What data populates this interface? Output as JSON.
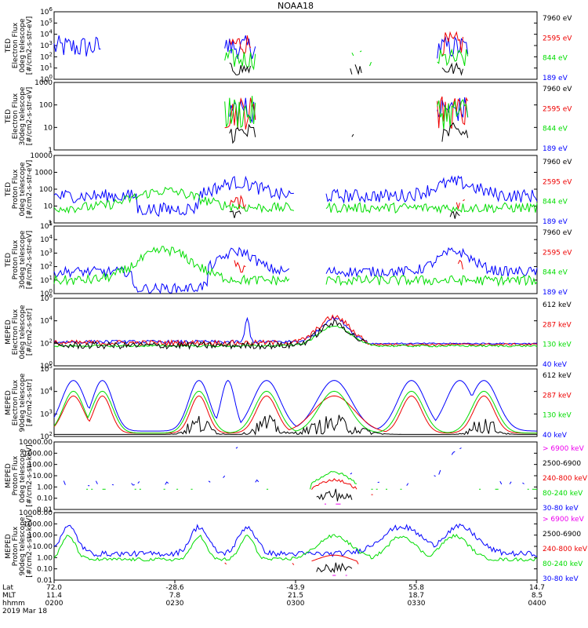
{
  "title": "NOAA18",
  "colors": {
    "blue": "#0000ff",
    "red": "#ee0000",
    "green": "#00dd00",
    "black": "#000000",
    "magenta": "#ee00ee"
  },
  "panels": [
    {
      "ylabel": [
        "TED",
        "Electron Flux",
        "0deg telescope",
        "[#/cm2-s-str-eV]"
      ],
      "ticks": [
        "10^6",
        "10^5",
        "10^4",
        "10^3",
        "10^2",
        "10^1",
        "10^0"
      ],
      "legend": [
        "7960 eV",
        "2595 eV",
        "844 eV",
        "189 eV"
      ]
    },
    {
      "ylabel": [
        "TED",
        "Electron Flux",
        "30deg telescope",
        "[#/cm2-s-str-eV]"
      ],
      "ticks": [
        "1000",
        "100",
        "10",
        "1"
      ],
      "legend": [
        "7960 eV",
        "2595 eV",
        "844 eV",
        "189 eV"
      ]
    },
    {
      "ylabel": [
        "TED",
        "Proton Flux",
        "0deg telescope",
        "[#/cm2-s-str-eV]"
      ],
      "ticks": [
        "10000",
        "1000",
        "100",
        "10",
        "1"
      ],
      "legend": [
        "7960 eV",
        "2595 eV",
        "844 eV",
        "189 eV"
      ]
    },
    {
      "ylabel": [
        "TED",
        "Proton Flux",
        "30deg telescope",
        "[#/cm2-s-str-eV]"
      ],
      "ticks": [
        "10^5",
        "10^4",
        "10^3",
        "10^2",
        "10^1",
        "10^0"
      ],
      "legend": [
        "7960 eV",
        "2595 eV",
        "844 eV",
        "189 eV"
      ]
    },
    {
      "ylabel": [
        "MEPED",
        "Electron Flux",
        "0deg telescope",
        "[#/cm2-s-str]"
      ],
      "ticks": [
        "10^6",
        "10^4",
        "10^2",
        "10^0"
      ],
      "legend": [
        "612 keV",
        "287 keV",
        "130 keV",
        "40 keV"
      ]
    },
    {
      "ylabel": [
        "MEPED",
        "Electron Flux",
        "90deg telescope",
        "[#/cm2-s-str]"
      ],
      "ticks": [
        "10^5",
        "10^4",
        "10^3",
        "10^2"
      ],
      "legend": [
        "612 keV",
        "287 keV",
        "130 keV",
        "40 keV"
      ]
    },
    {
      "ylabel": [
        "MEPED",
        "Proton Flux",
        "0deg telescope",
        "[#/cm2-s-str-keV]"
      ],
      "ticks": [
        "10000.00",
        "1000.00",
        "100.00",
        "10.00",
        "1.00",
        "0.10",
        "0.01"
      ],
      "legend": [
        "> 6900 keV",
        "2500-6900",
        "240-800 keV",
        "80-240 keV",
        "30-80 keV"
      ]
    },
    {
      "ylabel": [
        "MEPED",
        "Proton Flux",
        "90deg telescope",
        "[#/cm2-s-str-keV]"
      ],
      "ticks": [
        "10000.00",
        "1000.00",
        "100.00",
        "10.00",
        "1.00",
        "0.10",
        "0.01"
      ],
      "legend": [
        "> 6900 keV",
        "2500-6900",
        "240-800 keV",
        "80-240 keV",
        "30-80 keV"
      ]
    }
  ],
  "xaxis": {
    "row_labels": [
      "Lat",
      "MLT",
      "hhmm",
      "2019 Mar 18"
    ],
    "lat": [
      "72.0",
      "-28.6",
      "-43.9",
      "55.8",
      "14.7"
    ],
    "mlt": [
      "11.4",
      "7.8",
      "21.5",
      "18.7",
      "8.5"
    ],
    "hhmm": [
      "0200",
      "0230",
      "0300",
      "0330",
      "0400"
    ]
  },
  "chart_data": {
    "type": "line",
    "title": "NOAA18",
    "x_time": [
      "0200",
      "0230",
      "0300",
      "0330",
      "0400"
    ],
    "x_lat": [
      72.0,
      -28.6,
      -43.9,
      55.8,
      14.7
    ],
    "x_mlt": [
      11.4,
      7.8,
      21.5,
      18.7,
      8.5
    ],
    "date": "2019 Mar 18",
    "panels": [
      {
        "name": "TED Electron Flux 0deg",
        "series": [
          "7960 eV",
          "2595 eV",
          "844 eV",
          "189 eV"
        ],
        "yscale": "log",
        "ylim": [
          1,
          1000000
        ]
      },
      {
        "name": "TED Electron Flux 30deg",
        "series": [
          "7960 eV",
          "2595 eV",
          "844 eV",
          "189 eV"
        ],
        "yscale": "log",
        "ylim": [
          1,
          1000
        ]
      },
      {
        "name": "TED Proton Flux 0deg",
        "series": [
          "7960 eV",
          "2595 eV",
          "844 eV",
          "189 eV"
        ],
        "yscale": "log",
        "ylim": [
          1,
          10000
        ]
      },
      {
        "name": "TED Proton Flux 30deg",
        "series": [
          "7960 eV",
          "2595 eV",
          "844 eV",
          "189 eV"
        ],
        "yscale": "log",
        "ylim": [
          1,
          100000
        ]
      },
      {
        "name": "MEPED Electron Flux 0deg",
        "series": [
          "612 keV",
          "287 keV",
          "130 keV",
          "40 keV"
        ],
        "yscale": "log",
        "ylim": [
          1,
          1000000
        ]
      },
      {
        "name": "MEPED Electron Flux 90deg",
        "series": [
          "612 keV",
          "287 keV",
          "130 keV",
          "40 keV"
        ],
        "yscale": "log",
        "ylim": [
          100,
          100000
        ]
      },
      {
        "name": "MEPED Proton Flux 0deg",
        "series": [
          "> 6900 keV",
          "2500-6900",
          "240-800 keV",
          "80-240 keV",
          "30-80 keV"
        ],
        "yscale": "log",
        "ylim": [
          0.01,
          10000
        ]
      },
      {
        "name": "MEPED Proton Flux 90deg",
        "series": [
          "> 6900 keV",
          "2500-6900",
          "240-800 keV",
          "80-240 keV",
          "30-80 keV"
        ],
        "yscale": "log",
        "ylim": [
          0.01,
          10000
        ]
      }
    ]
  }
}
